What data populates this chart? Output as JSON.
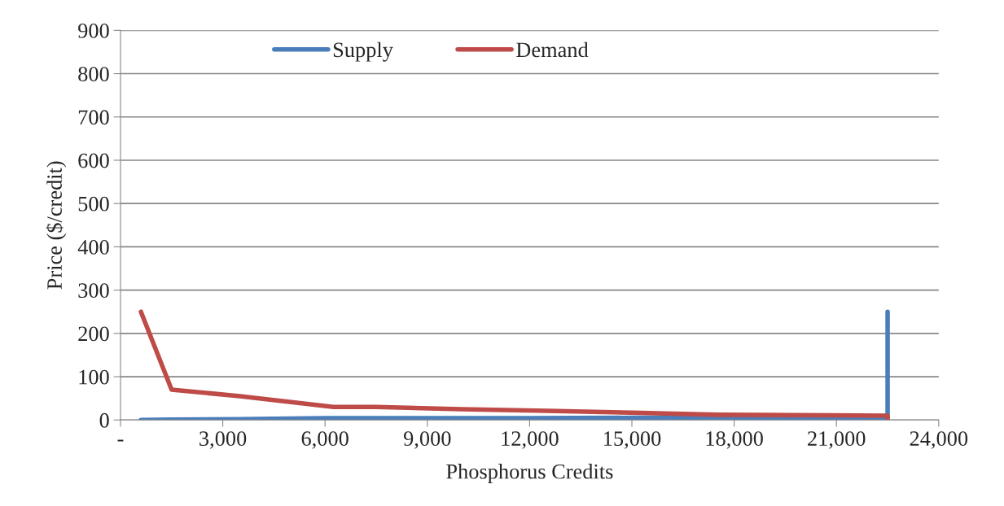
{
  "chart_data": {
    "type": "line",
    "xlabel": "Phosphorus Credits",
    "ylabel": "Price ($/credit)",
    "xlim": [
      0,
      24000
    ],
    "xticks": [
      {
        "value": 0,
        "label": "-"
      },
      {
        "value": 3000,
        "label": "3,000"
      },
      {
        "value": 6000,
        "label": "6,000"
      },
      {
        "value": 9000,
        "label": "9,000"
      },
      {
        "value": 12000,
        "label": "12,000"
      },
      {
        "value": 15000,
        "label": "15,000"
      },
      {
        "value": 18000,
        "label": "18,000"
      },
      {
        "value": 21000,
        "label": "21,000"
      },
      {
        "value": 24000,
        "label": "24,000"
      }
    ],
    "ylim": [
      0,
      900
    ],
    "yticks": [
      0,
      100,
      200,
      300,
      400,
      500,
      600,
      700,
      800,
      900
    ],
    "grid": "y",
    "legend": "top",
    "marker": "none",
    "line_style": "solid",
    "series": [
      {
        "name": "Supply",
        "color": "#4a7ebb",
        "x": [
          600,
          1500,
          3500,
          6000,
          9000,
          12000,
          15000,
          18000,
          22500,
          22500
        ],
        "values": [
          0,
          1,
          2,
          4,
          4,
          4,
          5,
          5,
          5,
          250
        ]
      },
      {
        "name": "Demand",
        "color": "#be4b48",
        "x": [
          600,
          1500,
          3500,
          6250,
          7500,
          10000,
          12500,
          15000,
          17500,
          22500,
          22500
        ],
        "values": [
          250,
          70,
          55,
          30,
          30,
          25,
          21,
          17,
          12,
          10,
          0
        ]
      }
    ]
  }
}
